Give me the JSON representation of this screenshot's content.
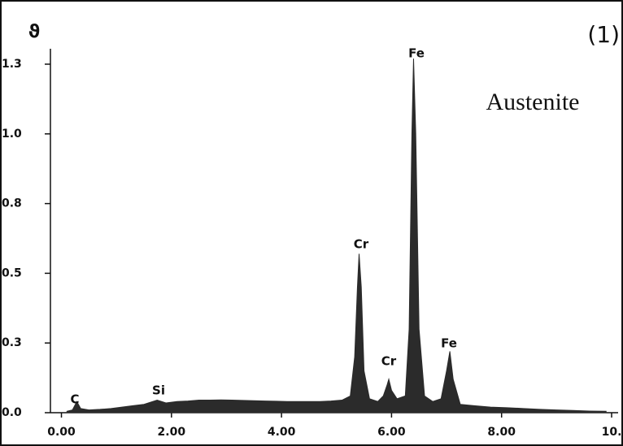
{
  "chart_data": {
    "type": "area",
    "y_label": "ϑ",
    "annotations": [
      "(1)",
      "Austenite",
      "C",
      "Si",
      "Cr",
      "Cr",
      "Fe",
      "Fe"
    ],
    "color": "#2b2b2b",
    "x": [
      0.1,
      0.2,
      0.28,
      0.35,
      0.5,
      0.7,
      0.9,
      1.1,
      1.3,
      1.5,
      1.74,
      1.9,
      2.1,
      2.3,
      2.5,
      2.7,
      2.9,
      3.1,
      3.3,
      3.5,
      3.7,
      3.9,
      4.1,
      4.3,
      4.5,
      4.7,
      4.9,
      5.1,
      5.25,
      5.33,
      5.38,
      5.41,
      5.45,
      5.5,
      5.6,
      5.75,
      5.85,
      5.92,
      5.95,
      6.0,
      6.1,
      6.25,
      6.32,
      6.37,
      6.4,
      6.44,
      6.5,
      6.6,
      6.75,
      6.9,
      7.0,
      7.06,
      7.12,
      7.25,
      7.5,
      7.8,
      8.1,
      8.4,
      8.7,
      9.0,
      9.3,
      9.6,
      9.9
    ],
    "values": [
      0.005,
      0.01,
      0.04,
      0.015,
      0.01,
      0.012,
      0.015,
      0.02,
      0.025,
      0.03,
      0.045,
      0.035,
      0.04,
      0.042,
      0.045,
      0.045,
      0.046,
      0.045,
      0.044,
      0.043,
      0.042,
      0.041,
      0.04,
      0.04,
      0.04,
      0.04,
      0.042,
      0.045,
      0.06,
      0.2,
      0.45,
      0.57,
      0.45,
      0.15,
      0.05,
      0.04,
      0.06,
      0.1,
      0.12,
      0.08,
      0.05,
      0.06,
      0.3,
      1.0,
      1.27,
      1.0,
      0.3,
      0.06,
      0.04,
      0.05,
      0.15,
      0.22,
      0.12,
      0.03,
      0.025,
      0.02,
      0.018,
      0.015,
      0.012,
      0.01,
      0.008,
      0.006,
      0.005
    ],
    "xlim": [
      -0.2,
      10.0
    ],
    "ylim": [
      0,
      1.3
    ],
    "xticks": [
      {
        "value": 0,
        "label": "0.00"
      },
      {
        "value": 2,
        "label": "2.00"
      },
      {
        "value": 4,
        "label": "4.00"
      },
      {
        "value": 6,
        "label": "6.00"
      },
      {
        "value": 8,
        "label": "8.00"
      },
      {
        "value": 10,
        "label": "10."
      }
    ],
    "yticks": [
      {
        "value": 0,
        "label": "0.0"
      },
      {
        "value": 0.25,
        "label": "0.3"
      },
      {
        "value": 0.5,
        "label": "0.5"
      },
      {
        "value": 0.75,
        "label": "0.8"
      },
      {
        "value": 1.0,
        "label": "1.0"
      },
      {
        "value": 1.25,
        "label": "1.3"
      }
    ]
  }
}
